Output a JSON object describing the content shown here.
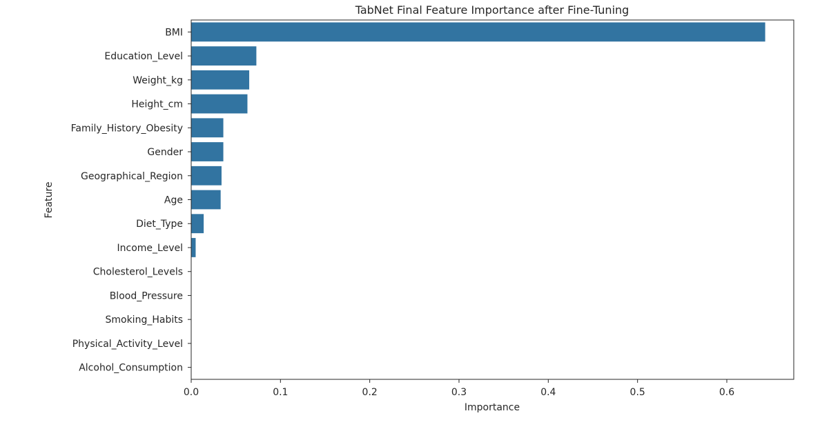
{
  "chart_data": {
    "type": "bar",
    "orientation": "horizontal",
    "title": "TabNet Final Feature Importance after Fine-Tuning",
    "xlabel": "Importance",
    "ylabel": "Feature",
    "categories": [
      "BMI",
      "Education_Level",
      "Weight_kg",
      "Height_cm",
      "Family_History_Obesity",
      "Gender",
      "Geographical_Region",
      "Age",
      "Diet_Type",
      "Income_Level",
      "Cholesterol_Levels",
      "Blood_Pressure",
      "Smoking_Habits",
      "Physical_Activity_Level",
      "Alcohol_Consumption"
    ],
    "values": [
      0.643,
      0.073,
      0.065,
      0.063,
      0.036,
      0.036,
      0.034,
      0.033,
      0.014,
      0.005,
      0.0,
      0.0,
      0.0,
      0.0,
      0.0
    ],
    "xlim": [
      0,
      0.675
    ],
    "xticks": [
      "0.0",
      "0.1",
      "0.2",
      "0.3",
      "0.4",
      "0.5",
      "0.6"
    ],
    "grid": false,
    "bar_color": "#3274a1"
  }
}
